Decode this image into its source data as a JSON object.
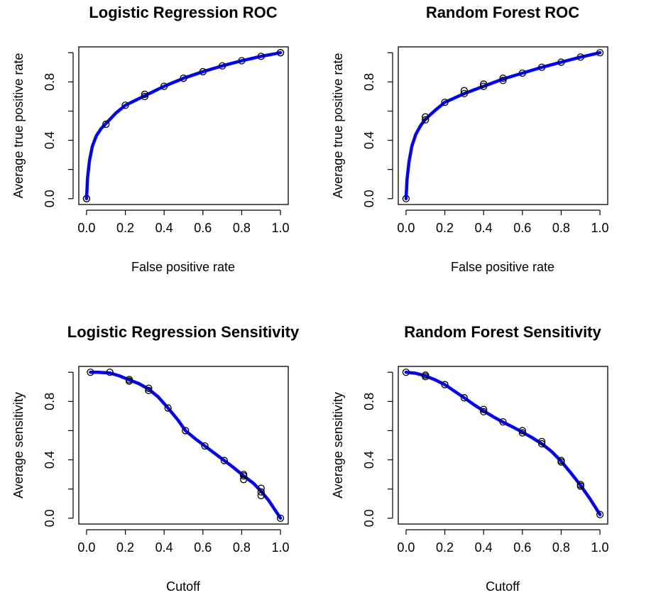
{
  "chart_data": [
    {
      "type": "line",
      "title": "Logistic Regression ROC",
      "xlabel": "False positive rate",
      "ylabel": "Average true positive rate",
      "xlim": [
        0,
        1
      ],
      "ylim": [
        0,
        1
      ],
      "grid": false,
      "x_ticks": [
        "0.0",
        "0.2",
        "0.4",
        "0.6",
        "0.8",
        "1.0"
      ],
      "y_ticks": [
        "0.0",
        "0.4",
        "0.8"
      ],
      "line_color": "#0000ff",
      "curve": {
        "x": [
          0.0,
          0.005,
          0.015,
          0.03,
          0.05,
          0.075,
          0.1,
          0.15,
          0.2,
          0.3,
          0.4,
          0.5,
          0.6,
          0.7,
          0.8,
          0.9,
          1.0
        ],
        "y": [
          0.0,
          0.14,
          0.26,
          0.36,
          0.43,
          0.48,
          0.515,
          0.585,
          0.64,
          0.705,
          0.77,
          0.825,
          0.87,
          0.91,
          0.945,
          0.975,
          1.0
        ]
      },
      "points": {
        "x": [
          0.0,
          0.0,
          0.1,
          0.2,
          0.3,
          0.3,
          0.4,
          0.5,
          0.6,
          0.7,
          0.8,
          0.9,
          1.0,
          1.0
        ],
        "y": [
          0.0,
          0.0,
          0.51,
          0.64,
          0.7,
          0.715,
          0.77,
          0.825,
          0.87,
          0.91,
          0.945,
          0.975,
          1.0,
          1.0
        ]
      }
    },
    {
      "type": "line",
      "title": "Random Forest ROC",
      "xlabel": "False positive rate",
      "ylabel": "Average true positive rate",
      "xlim": [
        0,
        1
      ],
      "ylim": [
        0,
        1
      ],
      "grid": false,
      "x_ticks": [
        "0.0",
        "0.2",
        "0.4",
        "0.6",
        "0.8",
        "1.0"
      ],
      "y_ticks": [
        "0.0",
        "0.4",
        "0.8"
      ],
      "line_color": "#0000ff",
      "curve": {
        "x": [
          0.0,
          0.005,
          0.015,
          0.03,
          0.05,
          0.075,
          0.1,
          0.15,
          0.2,
          0.3,
          0.4,
          0.5,
          0.6,
          0.7,
          0.8,
          0.9,
          1.0
        ],
        "y": [
          0.0,
          0.13,
          0.25,
          0.36,
          0.44,
          0.5,
          0.545,
          0.605,
          0.66,
          0.72,
          0.77,
          0.82,
          0.86,
          0.9,
          0.935,
          0.97,
          1.0
        ]
      },
      "points": {
        "x": [
          0.0,
          0.1,
          0.1,
          0.2,
          0.3,
          0.3,
          0.4,
          0.4,
          0.5,
          0.5,
          0.6,
          0.7,
          0.8,
          0.9,
          1.0
        ],
        "y": [
          0.0,
          0.54,
          0.56,
          0.66,
          0.72,
          0.74,
          0.77,
          0.785,
          0.81,
          0.825,
          0.86,
          0.9,
          0.935,
          0.97,
          1.0
        ]
      }
    },
    {
      "type": "line",
      "title": "Logistic Regression Sensitivity",
      "xlabel": "Cutoff",
      "ylabel": "Average sensitivity",
      "xlim": [
        0,
        1
      ],
      "ylim": [
        0,
        1
      ],
      "grid": false,
      "x_ticks": [
        "0.0",
        "0.2",
        "0.4",
        "0.6",
        "0.8",
        "1.0"
      ],
      "y_ticks": [
        "0.0",
        "0.4",
        "0.8"
      ],
      "line_color": "#0000ff",
      "curve": {
        "x": [
          0.02,
          0.06,
          0.12,
          0.17,
          0.22,
          0.27,
          0.32,
          0.37,
          0.42,
          0.47,
          0.51,
          0.56,
          0.61,
          0.66,
          0.71,
          0.76,
          0.81,
          0.86,
          0.9,
          0.94,
          0.97,
          1.0
        ],
        "y": [
          1.0,
          1.0,
          0.995,
          0.975,
          0.948,
          0.922,
          0.885,
          0.83,
          0.755,
          0.675,
          0.6,
          0.545,
          0.495,
          0.445,
          0.395,
          0.345,
          0.29,
          0.24,
          0.185,
          0.12,
          0.06,
          0.0
        ]
      },
      "points": {
        "x": [
          0.02,
          0.12,
          0.22,
          0.22,
          0.32,
          0.32,
          0.42,
          0.51,
          0.61,
          0.71,
          0.81,
          0.81,
          0.81,
          0.9,
          0.9,
          0.9,
          1.0
        ],
        "y": [
          1.0,
          1.0,
          0.95,
          0.94,
          0.89,
          0.875,
          0.755,
          0.6,
          0.495,
          0.395,
          0.3,
          0.29,
          0.265,
          0.205,
          0.18,
          0.155,
          0.0
        ]
      }
    },
    {
      "type": "line",
      "title": "Random Forest Sensitivity",
      "xlabel": "Cutoff",
      "ylabel": "Average sensitivity",
      "xlim": [
        0,
        1
      ],
      "ylim": [
        0,
        1
      ],
      "grid": false,
      "x_ticks": [
        "0.0",
        "0.2",
        "0.4",
        "0.6",
        "0.8",
        "1.0"
      ],
      "y_ticks": [
        "0.0",
        "0.4",
        "0.8"
      ],
      "line_color": "#0000ff",
      "curve": {
        "x": [
          0.0,
          0.05,
          0.1,
          0.15,
          0.2,
          0.25,
          0.3,
          0.35,
          0.4,
          0.45,
          0.5,
          0.55,
          0.6,
          0.65,
          0.7,
          0.75,
          0.8,
          0.85,
          0.9,
          0.95,
          1.0
        ],
        "y": [
          1.0,
          0.993,
          0.975,
          0.948,
          0.915,
          0.87,
          0.825,
          0.778,
          0.735,
          0.695,
          0.658,
          0.625,
          0.59,
          0.552,
          0.51,
          0.458,
          0.39,
          0.31,
          0.225,
          0.13,
          0.025
        ]
      },
      "points": {
        "x": [
          0.0,
          0.1,
          0.1,
          0.2,
          0.3,
          0.4,
          0.4,
          0.5,
          0.6,
          0.6,
          0.7,
          0.7,
          0.8,
          0.8,
          0.9,
          0.9,
          1.0
        ],
        "y": [
          1.0,
          0.98,
          0.97,
          0.915,
          0.825,
          0.745,
          0.73,
          0.66,
          0.6,
          0.585,
          0.525,
          0.51,
          0.395,
          0.385,
          0.23,
          0.22,
          0.025
        ]
      }
    }
  ]
}
